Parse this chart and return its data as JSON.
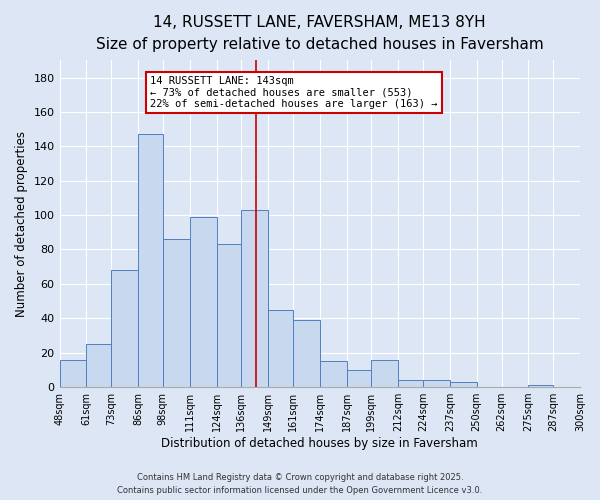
{
  "title": "14, RUSSETT LANE, FAVERSHAM, ME13 8YH",
  "subtitle": "Size of property relative to detached houses in Faversham",
  "xlabel": "Distribution of detached houses by size in Faversham",
  "ylabel": "Number of detached properties",
  "bar_left_edges": [
    48,
    61,
    73,
    86,
    98,
    111,
    124,
    136,
    149,
    161,
    174,
    187,
    199,
    212,
    224,
    237,
    250,
    262,
    275,
    287
  ],
  "bar_widths": [
    13,
    12,
    13,
    12,
    13,
    13,
    12,
    13,
    12,
    13,
    13,
    12,
    13,
    12,
    13,
    13,
    12,
    13,
    12,
    13
  ],
  "bar_heights": [
    16,
    25,
    68,
    147,
    86,
    99,
    83,
    103,
    45,
    39,
    15,
    10,
    16,
    4,
    4,
    3,
    0,
    0,
    1,
    0
  ],
  "bar_face_color": "#c8d8ee",
  "bar_edge_color": "#5080c0",
  "vline_x": 143,
  "vline_color": "#cc0000",
  "annotation_title": "14 RUSSETT LANE: 143sqm",
  "annotation_line1": "← 73% of detached houses are smaller (553)",
  "annotation_line2": "22% of semi-detached houses are larger (163) →",
  "annotation_box_color": "#ffffff",
  "annotation_box_edge": "#cc0000",
  "ylim": [
    0,
    190
  ],
  "yticks": [
    0,
    20,
    40,
    60,
    80,
    100,
    120,
    140,
    160,
    180
  ],
  "tick_labels": [
    "48sqm",
    "61sqm",
    "73sqm",
    "86sqm",
    "98sqm",
    "111sqm",
    "124sqm",
    "136sqm",
    "149sqm",
    "161sqm",
    "174sqm",
    "187sqm",
    "199sqm",
    "212sqm",
    "224sqm",
    "237sqm",
    "250sqm",
    "262sqm",
    "275sqm",
    "287sqm",
    "300sqm"
  ],
  "tick_positions": [
    48,
    61,
    73,
    86,
    98,
    111,
    124,
    136,
    149,
    161,
    174,
    187,
    199,
    212,
    224,
    237,
    250,
    262,
    275,
    287,
    300
  ],
  "footer_line1": "Contains HM Land Registry data © Crown copyright and database right 2025.",
  "footer_line2": "Contains public sector information licensed under the Open Government Licence v3.0.",
  "bg_color": "#dce6f5",
  "title_fontsize": 11,
  "subtitle_fontsize": 9,
  "grid_color": "#ffffff",
  "figsize": [
    6.0,
    5.0
  ],
  "dpi": 100
}
